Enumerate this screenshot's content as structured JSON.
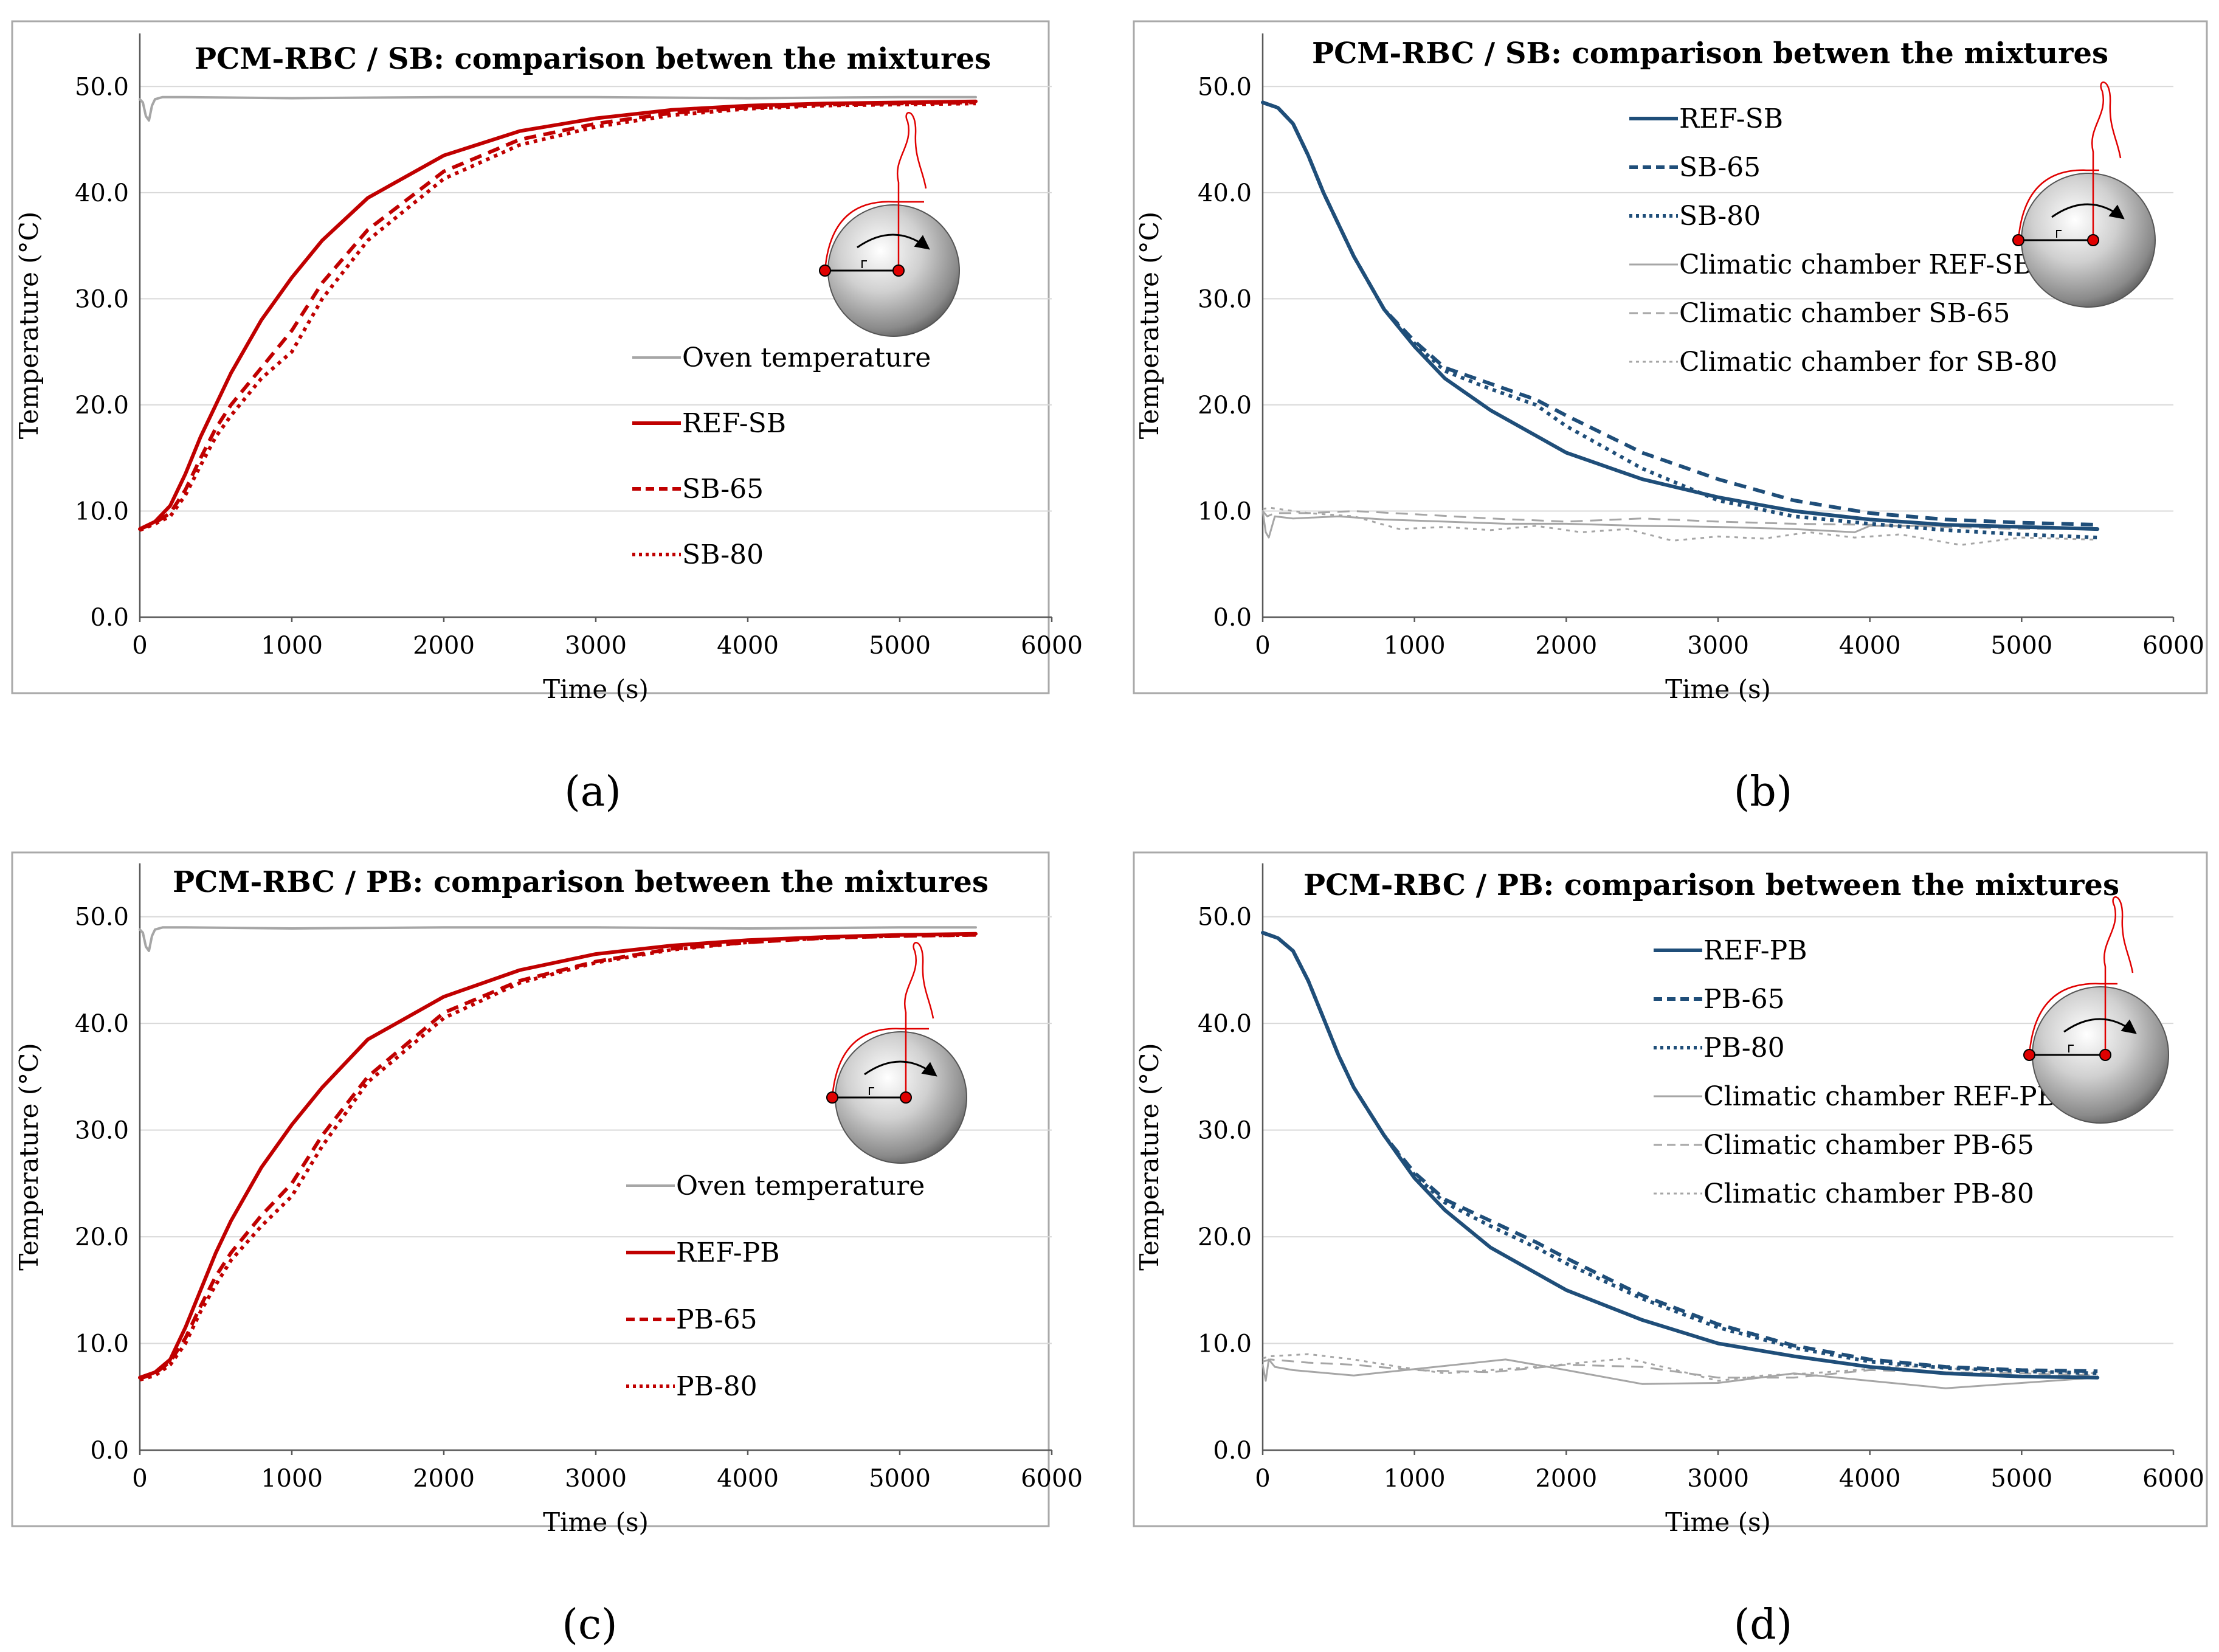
{
  "figure": {
    "captions": [
      "(a)",
      "(b)",
      "(c)",
      "(d)"
    ]
  },
  "colors": {
    "red": "#c00000",
    "blue": "#1f4e79",
    "gray": "#a6a6a6",
    "grid": "#d9d9d9",
    "frame": "#a9a9a9"
  },
  "chart_data": [
    {
      "id": "a",
      "type": "line",
      "title": "PCM-RBC / SB: comparison betwen the mixtures",
      "xlabel": "Time (s)",
      "ylabel": "Temperature (°C)",
      "xlim": [
        0,
        6000
      ],
      "ylim": [
        0,
        55
      ],
      "xticks": [
        0,
        1000,
        2000,
        3000,
        4000,
        5000,
        6000
      ],
      "yticks": [
        "0.0",
        "10.0",
        "20.0",
        "30.0",
        "40.0",
        "50.0"
      ],
      "legend_position": "center-right",
      "series": [
        {
          "name": "Oven temperature",
          "color": "gray",
          "dash": "solid",
          "width": 4,
          "x": [
            0,
            20,
            40,
            60,
            80,
            100,
            150,
            300,
            1000,
            2000,
            3000,
            4000,
            5000,
            5500
          ],
          "y": [
            48.8,
            48.5,
            47.2,
            46.8,
            48.2,
            48.8,
            49.0,
            49.0,
            48.9,
            49.0,
            49.0,
            48.9,
            49.0,
            49.0
          ]
        },
        {
          "name": "REF-SB",
          "color": "red",
          "dash": "solid",
          "width": 6,
          "x": [
            0,
            100,
            200,
            300,
            400,
            500,
            600,
            800,
            1000,
            1200,
            1500,
            2000,
            2500,
            3000,
            3500,
            4000,
            4500,
            5000,
            5500
          ],
          "y": [
            8.3,
            9.0,
            10.5,
            13.5,
            17.0,
            20.0,
            23.0,
            28.0,
            32.0,
            35.5,
            39.5,
            43.5,
            45.8,
            47.0,
            47.8,
            48.2,
            48.4,
            48.5,
            48.6
          ]
        },
        {
          "name": "SB-65",
          "color": "red",
          "dash": "dash",
          "width": 6,
          "x": [
            0,
            100,
            200,
            300,
            400,
            500,
            600,
            800,
            1000,
            1200,
            1500,
            2000,
            2500,
            3000,
            3500,
            4000,
            4500,
            5000,
            5500
          ],
          "y": [
            8.3,
            8.9,
            9.8,
            12.0,
            15.0,
            17.8,
            20.0,
            23.5,
            27.0,
            31.5,
            36.5,
            42.0,
            45.0,
            46.5,
            47.5,
            48.0,
            48.3,
            48.4,
            48.5
          ]
        },
        {
          "name": "SB-80",
          "color": "red",
          "dash": "dot",
          "width": 6,
          "x": [
            0,
            100,
            200,
            300,
            400,
            500,
            600,
            800,
            1000,
            1200,
            1500,
            2000,
            2500,
            3000,
            3500,
            4000,
            4500,
            5000,
            5500
          ],
          "y": [
            8.2,
            8.8,
            9.5,
            11.5,
            14.3,
            17.0,
            19.0,
            22.5,
            25.0,
            30.0,
            35.5,
            41.3,
            44.5,
            46.2,
            47.3,
            47.9,
            48.2,
            48.3,
            48.4
          ]
        }
      ]
    },
    {
      "id": "b",
      "type": "line",
      "title": "PCM-RBC / SB: comparison betwen the mixtures",
      "xlabel": "Time (s)",
      "ylabel": "Temperature (°C)",
      "xlim": [
        0,
        6000
      ],
      "ylim": [
        0,
        55
      ],
      "xticks": [
        0,
        1000,
        2000,
        3000,
        4000,
        5000,
        6000
      ],
      "yticks": [
        "0.0",
        "10.0",
        "20.0",
        "30.0",
        "40.0",
        "50.0"
      ],
      "legend_position": "top-center",
      "series": [
        {
          "name": "REF-SB",
          "color": "blue",
          "dash": "solid",
          "width": 6,
          "x": [
            0,
            100,
            200,
            300,
            400,
            500,
            600,
            800,
            1000,
            1200,
            1500,
            2000,
            2500,
            3000,
            3500,
            4000,
            4500,
            5000,
            5500
          ],
          "y": [
            48.5,
            48.0,
            46.5,
            43.5,
            40.0,
            37.0,
            34.0,
            29.0,
            25.5,
            22.5,
            19.5,
            15.5,
            13.0,
            11.3,
            10.0,
            9.2,
            8.7,
            8.5,
            8.3
          ]
        },
        {
          "name": "SB-65",
          "color": "blue",
          "dash": "dash",
          "width": 6,
          "x": [
            0,
            100,
            200,
            300,
            400,
            500,
            600,
            800,
            1000,
            1200,
            1500,
            1800,
            2000,
            2500,
            3000,
            3500,
            4000,
            4500,
            5000,
            5500
          ],
          "y": [
            48.5,
            48.0,
            46.5,
            43.5,
            40.0,
            37.0,
            34.0,
            29.0,
            26.0,
            23.5,
            22.0,
            20.5,
            19.0,
            15.5,
            13.0,
            11.0,
            9.8,
            9.2,
            8.9,
            8.7
          ]
        },
        {
          "name": "SB-80",
          "color": "blue",
          "dash": "dot",
          "width": 6,
          "x": [
            0,
            100,
            200,
            300,
            400,
            500,
            600,
            800,
            1000,
            1200,
            1500,
            1800,
            2000,
            2500,
            3000,
            3500,
            4000,
            4500,
            5000,
            5500
          ],
          "y": [
            48.5,
            48.0,
            46.5,
            43.5,
            40.0,
            37.0,
            34.0,
            29.0,
            25.8,
            23.2,
            21.5,
            20.0,
            18.0,
            14.0,
            11.0,
            9.5,
            8.8,
            8.2,
            7.8,
            7.5
          ]
        },
        {
          "name": "Climatic chamber REF-SB",
          "color": "gray",
          "dash": "solid",
          "width": 3,
          "x": [
            0,
            20,
            40,
            80,
            200,
            500,
            800,
            1200,
            1600,
            2000,
            2500,
            3000,
            3500,
            3900,
            4000,
            4500,
            5000,
            5500
          ],
          "y": [
            10.0,
            8.0,
            7.5,
            9.5,
            9.3,
            9.5,
            9.2,
            9.0,
            8.8,
            8.8,
            8.6,
            8.5,
            8.3,
            8.0,
            8.6,
            8.6,
            8.5,
            8.3
          ]
        },
        {
          "name": "Climatic chamber SB-65",
          "color": "gray",
          "dash": "dash",
          "width": 3,
          "x": [
            0,
            30,
            80,
            300,
            600,
            1000,
            1500,
            2000,
            2500,
            3000,
            3500,
            4000,
            4500,
            5000,
            5500
          ],
          "y": [
            10.0,
            9.5,
            9.8,
            9.8,
            10.0,
            9.7,
            9.3,
            9.0,
            9.3,
            9.0,
            8.8,
            8.7,
            8.5,
            8.3,
            8.4
          ]
        },
        {
          "name": "Climatic chamber for SB-80",
          "color": "gray",
          "dash": "dot",
          "width": 3,
          "x": [
            0,
            50,
            300,
            600,
            900,
            1200,
            1500,
            1800,
            2100,
            2400,
            2700,
            3000,
            3300,
            3600,
            3900,
            4200,
            4600,
            5000,
            5500
          ],
          "y": [
            10.2,
            10.3,
            9.8,
            9.5,
            8.3,
            8.5,
            8.2,
            8.6,
            8.0,
            8.3,
            7.2,
            7.6,
            7.4,
            8.0,
            7.5,
            7.8,
            6.8,
            7.5,
            7.3
          ]
        }
      ]
    },
    {
      "id": "c",
      "type": "line",
      "title": "PCM-RBC / PB: comparison between the mixtures",
      "xlabel": "Time (s)",
      "ylabel": "Temperature (°C)",
      "xlim": [
        0,
        6000
      ],
      "ylim": [
        0,
        55
      ],
      "xticks": [
        0,
        1000,
        2000,
        3000,
        4000,
        5000,
        6000
      ],
      "yticks": [
        "0.0",
        "10.0",
        "20.0",
        "30.0",
        "40.0",
        "50.0"
      ],
      "legend_position": "center-right",
      "series": [
        {
          "name": "Oven temperature",
          "color": "gray",
          "dash": "solid",
          "width": 4,
          "x": [
            0,
            20,
            40,
            60,
            80,
            100,
            150,
            300,
            1000,
            2000,
            3000,
            4000,
            5000,
            5500
          ],
          "y": [
            48.8,
            48.5,
            47.2,
            46.8,
            48.2,
            48.8,
            49.0,
            49.0,
            48.9,
            49.0,
            49.0,
            48.9,
            49.0,
            49.0
          ]
        },
        {
          "name": "REF-PB",
          "color": "red",
          "dash": "solid",
          "width": 6,
          "x": [
            0,
            100,
            200,
            300,
            400,
            500,
            600,
            800,
            1000,
            1200,
            1500,
            2000,
            2500,
            3000,
            3500,
            4000,
            4500,
            5000,
            5500
          ],
          "y": [
            6.8,
            7.3,
            8.5,
            11.5,
            15.0,
            18.5,
            21.5,
            26.5,
            30.5,
            34.0,
            38.5,
            42.5,
            45.0,
            46.5,
            47.3,
            47.8,
            48.1,
            48.3,
            48.4
          ]
        },
        {
          "name": "PB-65",
          "color": "red",
          "dash": "dash",
          "width": 6,
          "x": [
            0,
            100,
            200,
            300,
            400,
            500,
            600,
            800,
            1000,
            1200,
            1500,
            2000,
            2500,
            3000,
            3500,
            4000,
            4500,
            5000,
            5500
          ],
          "y": [
            6.7,
            7.2,
            8.3,
            10.5,
            13.5,
            16.3,
            18.5,
            22.0,
            25.0,
            29.5,
            35.0,
            41.0,
            44.0,
            45.8,
            47.0,
            47.6,
            48.0,
            48.2,
            48.3
          ]
        },
        {
          "name": "PB-80",
          "color": "red",
          "dash": "dot",
          "width": 6,
          "x": [
            0,
            100,
            200,
            300,
            400,
            500,
            600,
            800,
            1000,
            1200,
            1500,
            2000,
            2500,
            3000,
            3500,
            4000,
            4500,
            5000,
            5500
          ],
          "y": [
            6.6,
            7.0,
            8.0,
            10.0,
            13.0,
            15.5,
            17.8,
            21.0,
            23.8,
            28.5,
            34.5,
            40.5,
            43.8,
            45.7,
            46.9,
            47.6,
            48.0,
            48.2,
            48.3
          ]
        }
      ]
    },
    {
      "id": "d",
      "type": "line",
      "title": "PCM-RBC / PB: comparison between the mixtures",
      "xlabel": "Time (s)",
      "ylabel": "Temperature (°C)",
      "xlim": [
        0,
        6000
      ],
      "ylim": [
        0,
        55
      ],
      "xticks": [
        0,
        1000,
        2000,
        3000,
        4000,
        5000,
        6000
      ],
      "yticks": [
        "0.0",
        "10.0",
        "20.0",
        "30.0",
        "40.0",
        "50.0"
      ],
      "legend_position": "top-center",
      "series": [
        {
          "name": "REF-PB",
          "color": "blue",
          "dash": "solid",
          "width": 6,
          "x": [
            0,
            100,
            200,
            300,
            400,
            500,
            600,
            800,
            1000,
            1200,
            1500,
            2000,
            2500,
            3000,
            3500,
            4000,
            4500,
            5000,
            5500
          ],
          "y": [
            48.5,
            48.0,
            46.8,
            44.0,
            40.5,
            37.0,
            34.0,
            29.5,
            25.5,
            22.5,
            19.0,
            15.0,
            12.2,
            10.0,
            8.8,
            7.8,
            7.2,
            6.9,
            6.8
          ]
        },
        {
          "name": "PB-65",
          "color": "blue",
          "dash": "dash",
          "width": 6,
          "x": [
            0,
            100,
            200,
            300,
            400,
            500,
            600,
            800,
            1000,
            1200,
            1500,
            1800,
            2000,
            2500,
            3000,
            3500,
            4000,
            4500,
            5000,
            5500
          ],
          "y": [
            48.5,
            48.0,
            46.8,
            44.0,
            40.5,
            37.0,
            34.0,
            29.5,
            26.0,
            23.5,
            21.5,
            19.5,
            18.0,
            14.5,
            11.8,
            9.8,
            8.5,
            7.8,
            7.5,
            7.4
          ]
        },
        {
          "name": "PB-80",
          "color": "blue",
          "dash": "dot",
          "width": 6,
          "x": [
            0,
            100,
            200,
            300,
            400,
            500,
            600,
            800,
            1000,
            1200,
            1500,
            1800,
            2000,
            2500,
            3000,
            3500,
            4000,
            4500,
            5000,
            5500
          ],
          "y": [
            48.5,
            48.0,
            46.8,
            44.0,
            40.5,
            37.0,
            34.0,
            29.5,
            25.8,
            23.2,
            21.0,
            19.0,
            17.5,
            14.2,
            11.5,
            9.6,
            8.3,
            7.7,
            7.4,
            7.2
          ]
        },
        {
          "name": "Climatic chamber REF-PB",
          "color": "gray",
          "dash": "solid",
          "width": 3,
          "x": [
            0,
            20,
            40,
            80,
            200,
            600,
            1000,
            1600,
            2000,
            2500,
            3000,
            3500,
            4000,
            4500,
            5000,
            5500
          ],
          "y": [
            8.0,
            6.5,
            8.5,
            7.8,
            7.5,
            7.0,
            7.6,
            8.5,
            7.5,
            6.2,
            6.3,
            7.2,
            6.5,
            5.8,
            6.3,
            6.8
          ]
        },
        {
          "name": "Climatic chamber PB-65",
          "color": "gray",
          "dash": "dash",
          "width": 3,
          "x": [
            0,
            50,
            300,
            600,
            1000,
            1500,
            2000,
            2500,
            3000,
            3500,
            4000,
            4500,
            5000,
            5500
          ],
          "y": [
            8.3,
            8.5,
            8.2,
            8.0,
            7.5,
            7.3,
            8.0,
            7.8,
            6.8,
            6.8,
            7.5,
            7.3,
            7.2,
            7.0
          ]
        },
        {
          "name": "Climatic chamber PB-80",
          "color": "gray",
          "dash": "dot",
          "width": 3,
          "x": [
            0,
            50,
            300,
            600,
            900,
            1200,
            1500,
            1800,
            2100,
            2400,
            2700,
            3000,
            3300,
            3600,
            3900,
            4200,
            4600,
            5000,
            5500
          ],
          "y": [
            8.6,
            8.8,
            9.0,
            8.5,
            7.8,
            7.2,
            7.5,
            7.8,
            8.2,
            8.6,
            7.6,
            6.5,
            7.0,
            7.2,
            7.5,
            7.9,
            7.6,
            7.4,
            7.2
          ]
        }
      ]
    }
  ]
}
